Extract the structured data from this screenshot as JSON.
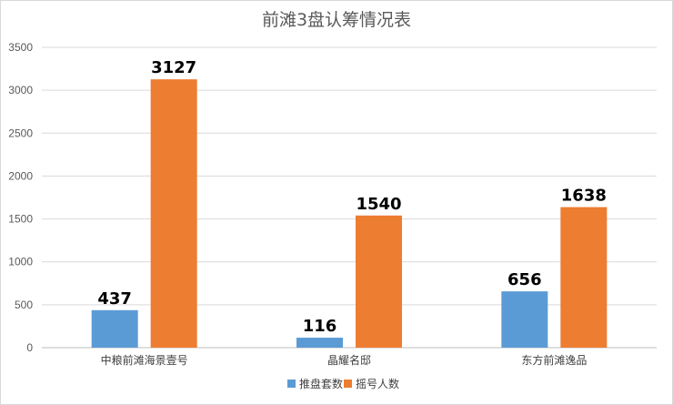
{
  "chart_data": {
    "type": "bar",
    "title": "前滩3盘认筹情况表",
    "xlabel": "",
    "ylabel": "",
    "categories": [
      "中粮前滩海景壹号",
      "晶耀名邸",
      "东方前滩逸品"
    ],
    "series": [
      {
        "name": "推盘套数",
        "values": [
          437,
          116,
          656
        ],
        "color": "#5b9bd5"
      },
      {
        "name": "摇号人数",
        "values": [
          3127,
          1540,
          1638
        ],
        "color": "#ed7d31"
      }
    ],
    "ylim": [
      0,
      3500
    ],
    "yticks": [
      "0",
      "500",
      "1000",
      "1500",
      "2000",
      "2500",
      "3000",
      "3500"
    ],
    "grid": true,
    "legend": "bottom-center",
    "data_labels": true
  }
}
